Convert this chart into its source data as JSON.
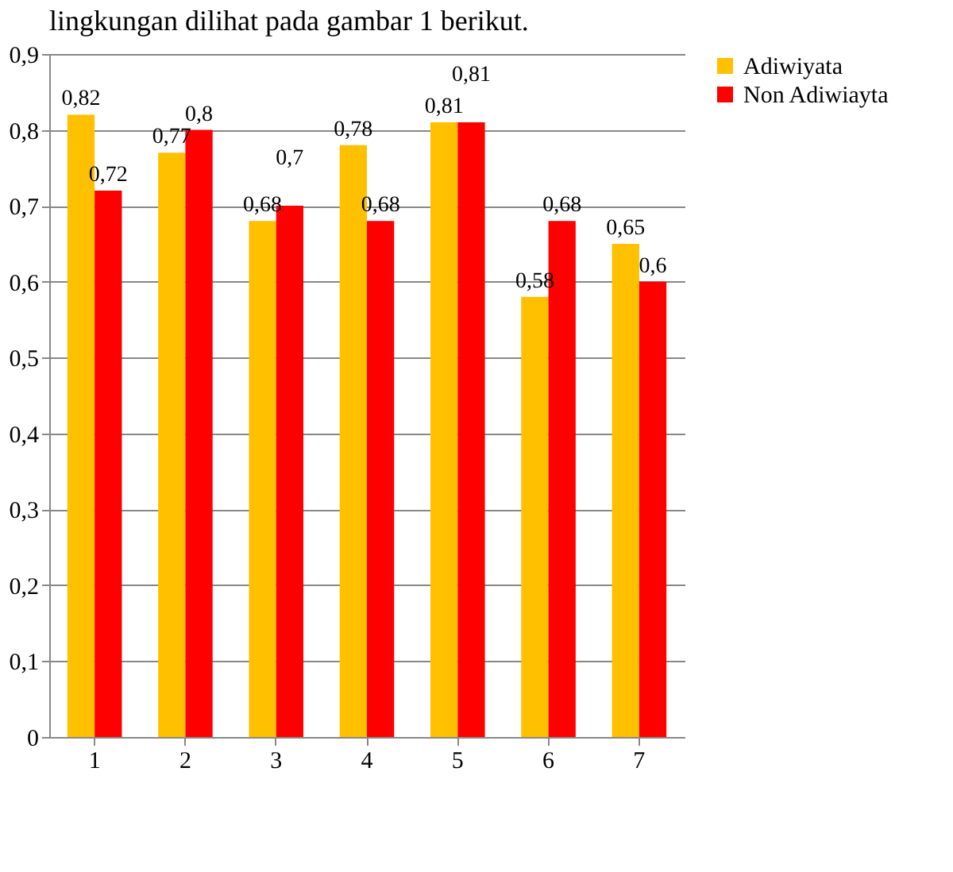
{
  "chart_data": {
    "type": "bar",
    "annotations": [
      "lingkungan dilihat pada gambar 1 berikut."
    ],
    "categories": [
      "1",
      "2",
      "3",
      "4",
      "5",
      "6",
      "7"
    ],
    "series": [
      {
        "name": "Adiwiyata",
        "color": "#ffc000",
        "values": [
          0.82,
          0.77,
          0.68,
          0.78,
          0.81,
          0.58,
          0.65
        ],
        "value_labels": [
          "0,82",
          "0,77",
          "0,68",
          "0,78",
          "0,81",
          "0,58",
          "0,65"
        ]
      },
      {
        "name": "Non Adiwiayta",
        "color": "#ff0000",
        "values": [
          0.72,
          0.8,
          0.7,
          0.68,
          0.81,
          0.68,
          0.6
        ],
        "value_labels": [
          "0,72",
          "0,8",
          "0,7",
          "0,68",
          "0,81",
          "0,68",
          "0,6"
        ]
      }
    ],
    "ylim": [
      0,
      0.9
    ],
    "yticks": [
      0,
      {
        "value": 0.1,
        "label": "0,1"
      },
      {
        "value": 0.2,
        "label": "0,2"
      },
      {
        "value": 0.3,
        "label": "0,3"
      },
      {
        "value": 0.4,
        "label": "0,4"
      },
      {
        "value": 0.5,
        "label": "0,5"
      },
      {
        "value": 0.6,
        "label": "0,6"
      },
      {
        "value": 0.7,
        "label": "0,7"
      },
      {
        "value": 0.8,
        "label": "0,8"
      },
      {
        "value": 0.9,
        "label": "0,9"
      }
    ],
    "grid": "y",
    "legend": "right"
  }
}
